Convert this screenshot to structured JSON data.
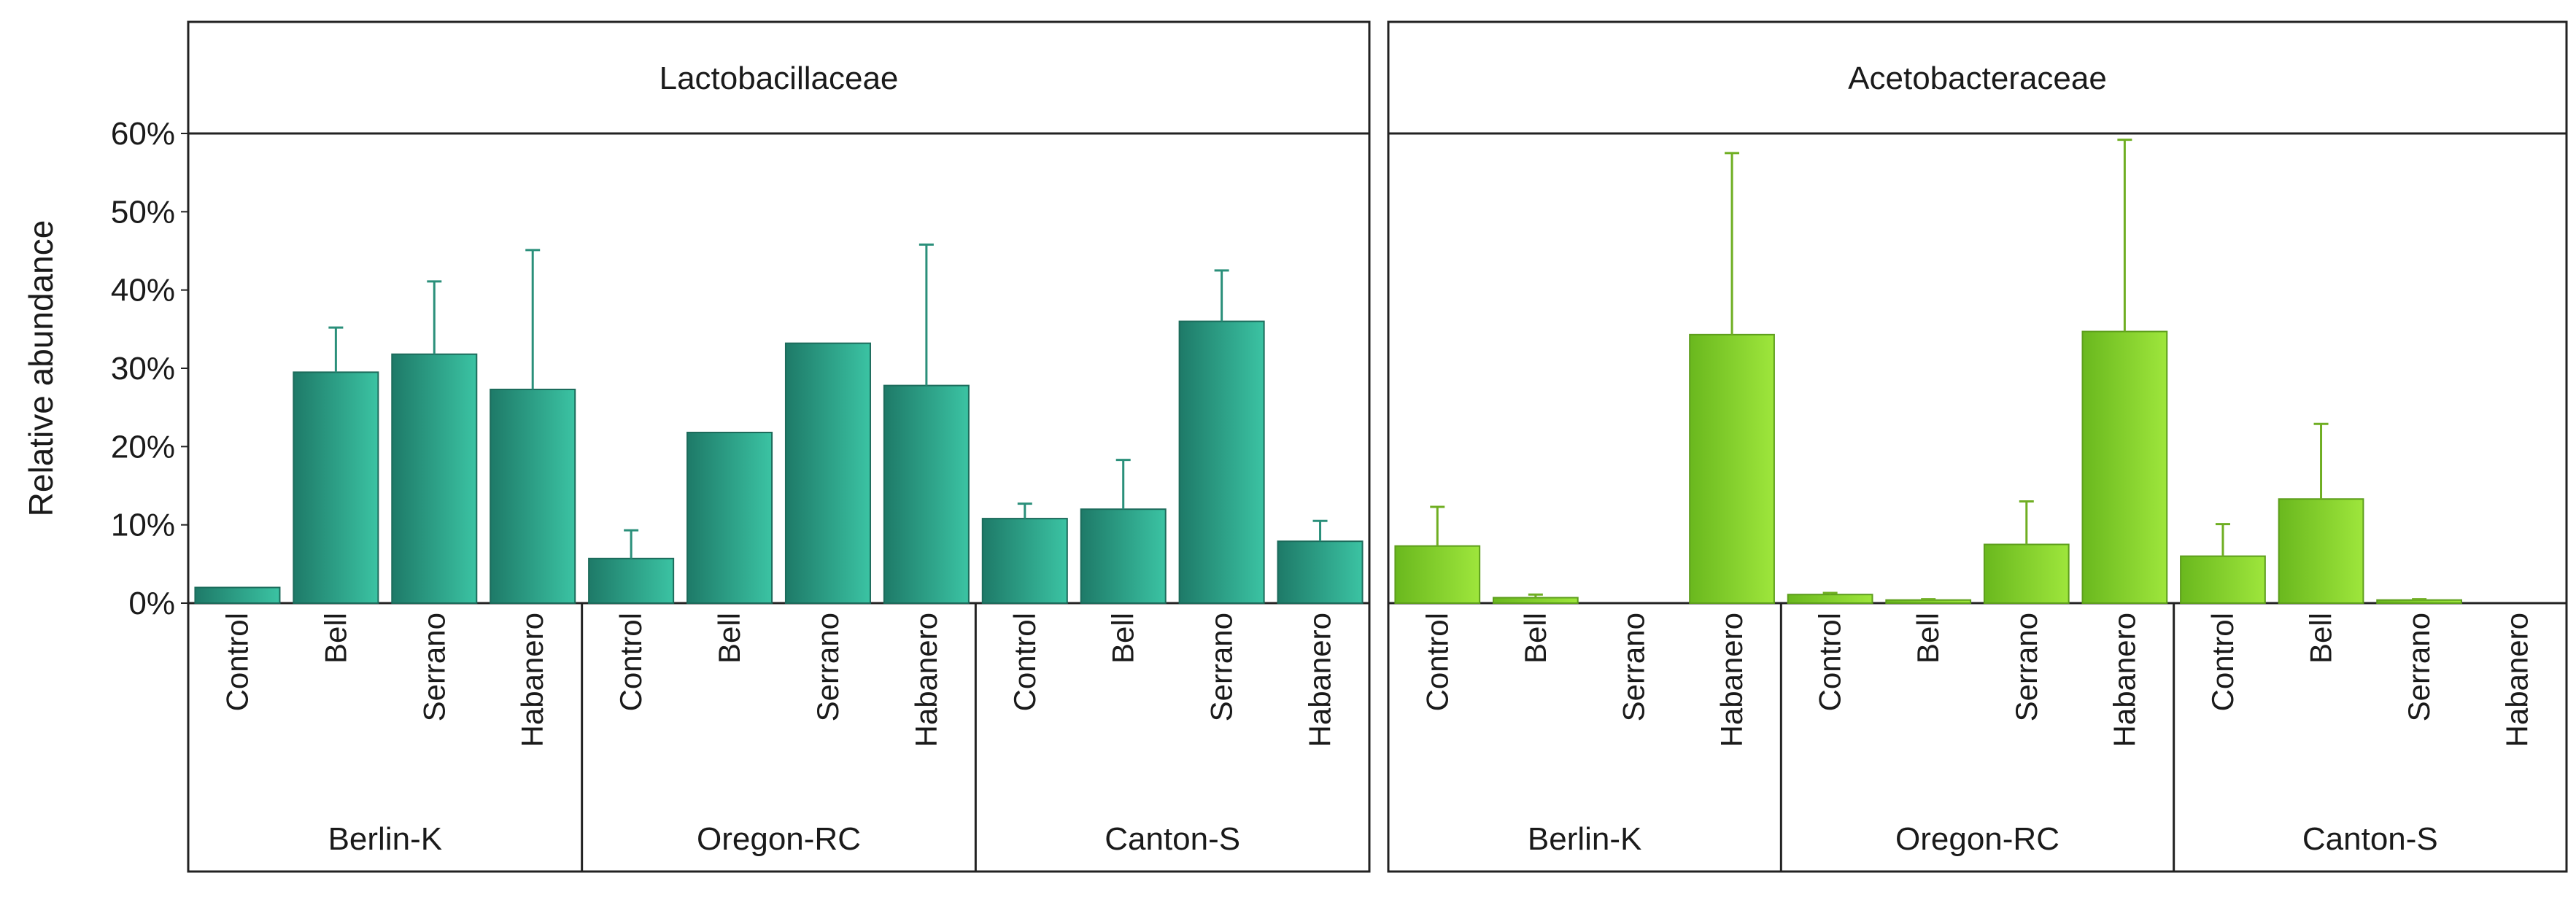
{
  "chart_data": [
    {
      "type": "bar",
      "panel": "left",
      "title": "Lactobacillaceae",
      "ylabel": "Relative abundance",
      "ylim": [
        0,
        60
      ],
      "yticks": [
        "0%",
        "10%",
        "20%",
        "30%",
        "40%",
        "50%",
        "60%"
      ],
      "groups": [
        {
          "name": "Berlin-K",
          "categories": [
            "Control",
            "Bell",
            "Serrano",
            "Habanero"
          ],
          "values": [
            2,
            29.5,
            31.8,
            27.3
          ],
          "errors": [
            0,
            5.7,
            9.3,
            17.8
          ]
        },
        {
          "name": "Oregon-RC",
          "categories": [
            "Control",
            "Bell",
            "Serrano",
            "Habanero"
          ],
          "values": [
            5.7,
            21.8,
            33.2,
            27.8
          ],
          "errors": [
            3.6,
            0,
            0,
            18
          ]
        },
        {
          "name": "Canton-S",
          "categories": [
            "Control",
            "Bell",
            "Serrano",
            "Habanero"
          ],
          "values": [
            10.8,
            12,
            36,
            7.9
          ],
          "errors": [
            1.9,
            6.3,
            6.5,
            2.6
          ]
        }
      ],
      "color": "#2a9d85"
    },
    {
      "type": "bar",
      "panel": "right",
      "title": "Acetobacteraceae",
      "ylim": [
        0,
        60
      ],
      "groups": [
        {
          "name": "Berlin-K",
          "categories": [
            "Control",
            "Bell",
            "Serrano",
            "Habanero"
          ],
          "values": [
            7.3,
            0.7,
            0,
            34.3
          ],
          "errors": [
            5,
            0.4,
            0,
            23.2
          ]
        },
        {
          "name": "Oregon-RC",
          "categories": [
            "Control",
            "Bell",
            "Serrano",
            "Habanero"
          ],
          "values": [
            1.1,
            0.4,
            7.5,
            34.7
          ],
          "errors": [
            0.2,
            0.1,
            5.5,
            24.5
          ]
        },
        {
          "name": "Canton-S",
          "categories": [
            "Control",
            "Bell",
            "Serrano",
            "Habanero"
          ],
          "values": [
            6,
            13.3,
            0.4,
            0
          ],
          "errors": [
            4.1,
            9.6,
            0.1,
            0
          ]
        }
      ],
      "color": "#7cc22a"
    }
  ]
}
